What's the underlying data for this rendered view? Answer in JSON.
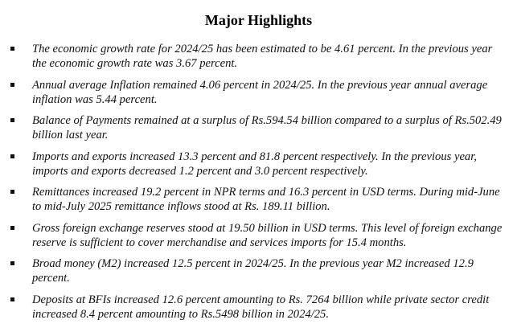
{
  "document": {
    "title": "Major Highlights",
    "highlights": [
      "The economic growth rate for 2024/25 has been estimated to be 4.61 percent. In the previous year the economic growth rate was 3.67 percent.",
      "Annual average Inflation remained 4.06 percent in 2024/25. In the previous year annual average inflation was 5.44 percent.",
      "Balance of Payments remained at a surplus of Rs.594.54 billion compared to a surplus of Rs.502.49 billion last year.",
      "Imports and exports increased 13.3 percent and 81.8 percent respectively. In the previous year, imports and exports decreased 1.2 percent and 3.0 percent respectively.",
      "Remittances increased 19.2 percent in NPR terms and 16.3 percent in USD terms. During mid-June to mid-July 2025 remittance inflows stood at Rs. 189.11 billion.",
      "Gross foreign exchange reserves stood at 19.50 billion in USD terms. This level of foreign exchange reserve is sufficient to cover merchandise and services imports for 15.4 months.",
      "Broad money (M2) increased 12.5 percent in 2024/25. In the previous year M2 increased 12.9 percent.",
      "Deposits at BFIs increased 12.6 percent amounting to Rs. 7264 billion while private sector credit increased 8.4 percent amounting to Rs.5498 billion in 2024/25."
    ]
  }
}
